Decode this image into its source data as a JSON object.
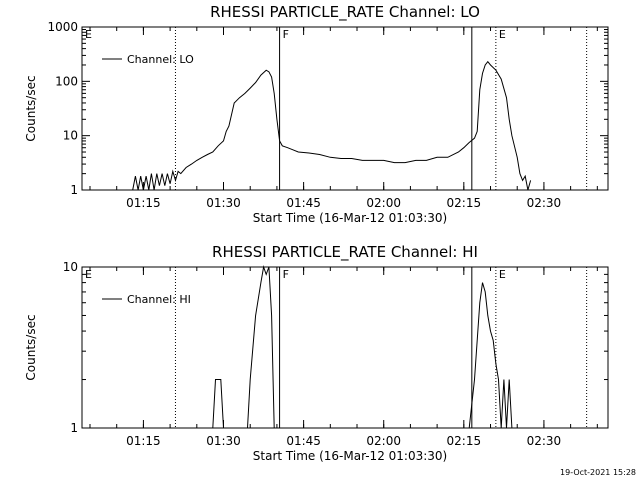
{
  "timestamp": "19-Oct-2021 15:28",
  "chart_data": [
    {
      "type": "line",
      "title": "RHESSI PARTICLE_RATE Channel: LO",
      "xlabel": "Start Time (16-Mar-12 01:03:30)",
      "ylabel": "Counts/sec",
      "yscale": "log",
      "ylim": [
        1,
        1000
      ],
      "xlim": [
        "01:03:30",
        "02:42:00"
      ],
      "x_ticks": [
        "01:15",
        "01:30",
        "01:45",
        "02:00",
        "02:15",
        "02:30"
      ],
      "y_ticks": [
        "1",
        "10",
        "100",
        "1000"
      ],
      "legend": "top-left",
      "series": [
        {
          "name": "Channel: LO",
          "x": [
            "01:13:00",
            "01:13:30",
            "01:14:00",
            "01:14:30",
            "01:15:00",
            "01:15:30",
            "01:16:00",
            "01:16:30",
            "01:17:00",
            "01:17:30",
            "01:18:00",
            "01:18:30",
            "01:19:00",
            "01:19:30",
            "01:20:00",
            "01:20:30",
            "01:21:00",
            "01:21:30",
            "01:22:00",
            "01:23:00",
            "01:24:00",
            "01:25:00",
            "01:26:00",
            "01:27:00",
            "01:28:00",
            "01:29:00",
            "01:30:00",
            "01:30:30",
            "01:31:00",
            "01:32:00",
            "01:33:00",
            "01:34:00",
            "01:35:00",
            "01:36:00",
            "01:37:00",
            "01:38:00",
            "01:38:30",
            "01:39:00",
            "01:39:30",
            "01:40:00",
            "01:40:30",
            "01:41:00",
            "01:42:00",
            "01:43:00",
            "01:44:00",
            "01:46:00",
            "01:48:00",
            "01:50:00",
            "01:52:00",
            "01:54:00",
            "01:56:00",
            "01:58:00",
            "02:00:00",
            "02:02:00",
            "02:04:00",
            "02:06:00",
            "02:08:00",
            "02:10:00",
            "02:12:00",
            "02:14:00",
            "02:15:00",
            "02:16:00",
            "02:17:00",
            "02:17:30",
            "02:18:00",
            "02:18:30",
            "02:19:00",
            "02:19:30",
            "02:20:00",
            "02:21:00",
            "02:22:00",
            "02:23:00",
            "02:23:30",
            "02:24:00",
            "02:25:00",
            "02:25:30",
            "02:26:00",
            "02:26:30",
            "02:27:00",
            "02:27:30"
          ],
          "values": [
            1,
            1.8,
            1,
            1.8,
            1,
            1.8,
            1,
            2,
            1,
            2,
            1.2,
            2,
            1.2,
            2,
            1.3,
            2.2,
            1.5,
            2.2,
            2,
            2.6,
            3,
            3.5,
            4,
            4.5,
            5,
            6.5,
            8,
            12,
            15,
            40,
            50,
            60,
            75,
            95,
            130,
            160,
            150,
            120,
            60,
            20,
            8,
            6.5,
            6,
            5.5,
            5,
            4.8,
            4.5,
            4,
            3.8,
            3.8,
            3.5,
            3.5,
            3.5,
            3.2,
            3.2,
            3.5,
            3.5,
            4,
            4,
            5,
            6,
            7.5,
            9,
            12,
            70,
            140,
            200,
            230,
            200,
            160,
            110,
            50,
            20,
            10,
            4,
            2,
            1.5,
            1.8,
            1,
            1.5
          ]
        }
      ],
      "markers": [
        {
          "label": "E",
          "time": "01:03:30",
          "style": "solid"
        },
        {
          "label": "",
          "time": "01:21:00",
          "style": "dotted"
        },
        {
          "label": "F",
          "time": "01:40:30",
          "style": "solid"
        },
        {
          "label": "",
          "time": "02:16:30",
          "style": "solid"
        },
        {
          "label": "E",
          "time": "02:21:00",
          "style": "dotted"
        },
        {
          "label": "",
          "time": "02:38:00",
          "style": "dotted"
        }
      ]
    },
    {
      "type": "line",
      "title": "RHESSI PARTICLE_RATE Channel: HI",
      "xlabel": "Start Time (16-Mar-12 01:03:30)",
      "ylabel": "Counts/sec",
      "yscale": "log",
      "ylim": [
        1,
        10
      ],
      "xlim": [
        "01:03:30",
        "02:42:00"
      ],
      "x_ticks": [
        "01:15",
        "01:30",
        "01:45",
        "02:00",
        "02:15",
        "02:30"
      ],
      "y_ticks": [
        "1",
        "10"
      ],
      "legend": "top-left",
      "series": [
        {
          "name": "Channel: HI",
          "x": [
            "01:28:00",
            "01:28:30",
            "01:29:30",
            "01:30:00",
            "01:34:30",
            "01:35:00",
            "01:36:00",
            "01:37:00",
            "01:37:30",
            "01:38:00",
            "01:38:30",
            "01:39:00",
            "01:39:30",
            "01:40:00",
            "01:40:30",
            "02:16:00",
            "02:17:00",
            "02:18:00",
            "02:18:30",
            "02:19:00",
            "02:19:30",
            "02:20:00",
            "02:20:30",
            "02:21:00",
            "02:21:30",
            "02:22:00",
            "02:22:30",
            "02:23:00",
            "02:23:30",
            "02:24:00"
          ],
          "values": [
            1,
            2,
            2,
            1,
            1,
            2,
            5,
            8,
            10,
            9,
            10,
            5,
            1,
            1,
            1,
            1,
            2,
            6,
            8,
            7,
            5,
            4,
            3.5,
            2.5,
            2,
            1,
            2,
            1,
            2,
            1
          ]
        }
      ],
      "markers": [
        {
          "label": "E",
          "time": "01:03:30",
          "style": "solid"
        },
        {
          "label": "",
          "time": "01:21:00",
          "style": "dotted"
        },
        {
          "label": "F",
          "time": "01:40:30",
          "style": "solid"
        },
        {
          "label": "",
          "time": "02:16:30",
          "style": "solid"
        },
        {
          "label": "E",
          "time": "02:21:00",
          "style": "dotted"
        },
        {
          "label": "",
          "time": "02:38:00",
          "style": "dotted"
        }
      ]
    }
  ]
}
